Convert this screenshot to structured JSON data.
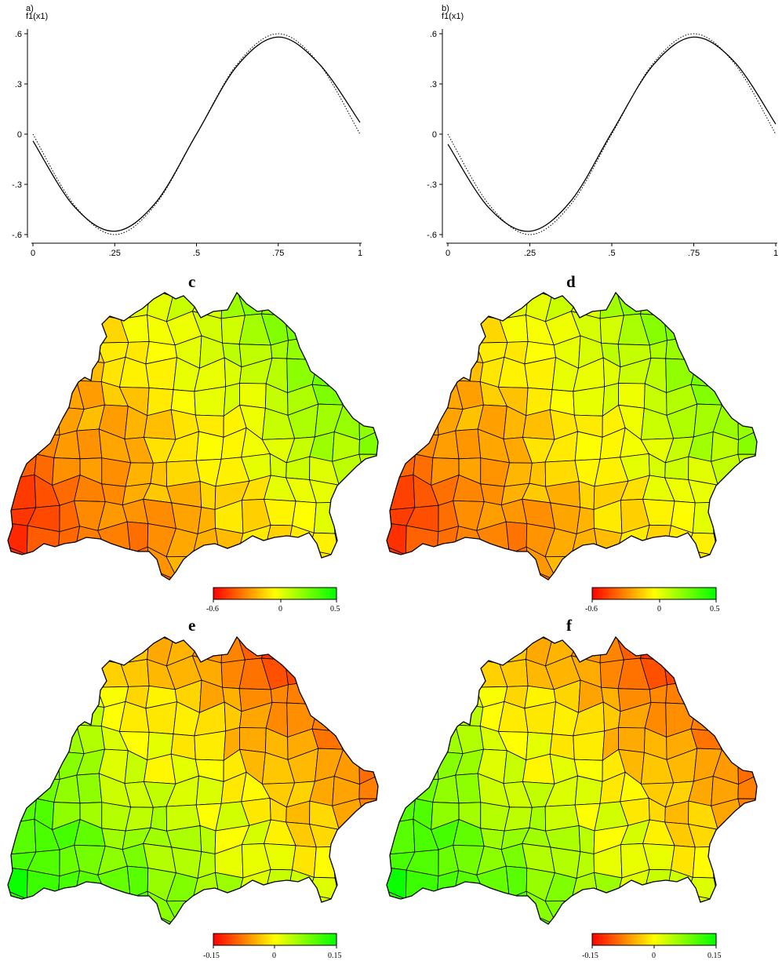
{
  "chart_data": [
    {
      "type": "line",
      "panel_label": "a)",
      "ylabel": "f1(x1)",
      "xlim": [
        0,
        1
      ],
      "ylim": [
        -0.6,
        0.6
      ],
      "xticks": [
        "0",
        ".25",
        ".5",
        ".75",
        "1"
      ],
      "yticks": [
        ".6",
        ".3",
        "0",
        "-.3",
        "-.6"
      ],
      "grid": false,
      "series": [
        {
          "style": "solid",
          "x": [
            0,
            0.125,
            0.25,
            0.375,
            0.5,
            0.625,
            0.75,
            0.875,
            1
          ],
          "y": [
            -0.04,
            -0.43,
            -0.58,
            -0.41,
            0.0,
            0.41,
            0.58,
            0.42,
            0.07
          ]
        },
        {
          "style": "dotted",
          "x": [
            0,
            0.125,
            0.25,
            0.375,
            0.5,
            0.625,
            0.75,
            0.875,
            1
          ],
          "y": [
            0.0,
            -0.42,
            -0.6,
            -0.42,
            0.0,
            0.42,
            0.6,
            0.42,
            0.0
          ]
        }
      ]
    },
    {
      "type": "line",
      "panel_label": "b)",
      "ylabel": "f1(x1)",
      "xlim": [
        0,
        1
      ],
      "ylim": [
        -0.6,
        0.6
      ],
      "xticks": [
        "0",
        ".25",
        ".5",
        ".75",
        "1"
      ],
      "yticks": [
        ".6",
        ".3",
        "0",
        "-.3",
        "-.6"
      ],
      "grid": false,
      "series": [
        {
          "style": "solid",
          "x": [
            0,
            0.125,
            0.25,
            0.375,
            0.5,
            0.625,
            0.75,
            0.875,
            1
          ],
          "y": [
            -0.06,
            -0.44,
            -0.58,
            -0.4,
            0.01,
            0.41,
            0.58,
            0.43,
            0.06
          ]
        },
        {
          "style": "dotted",
          "x": [
            0,
            0.125,
            0.25,
            0.375,
            0.5,
            0.625,
            0.75,
            0.875,
            1
          ],
          "y": [
            0.0,
            -0.42,
            -0.6,
            -0.42,
            0.0,
            0.42,
            0.6,
            0.42,
            0.0
          ]
        }
      ]
    },
    {
      "type": "heatmap",
      "title": "c",
      "scale_min": -0.6,
      "scale_max": 0.5,
      "colorbar_ticks": [
        "-0.6",
        "0",
        "0.5"
      ],
      "colormap": [
        "#ff0000",
        "#ffff00",
        "#00ff00"
      ],
      "gradient": {
        "west_south": -0.5,
        "east_north": 0.4
      }
    },
    {
      "type": "heatmap",
      "title": "d",
      "scale_min": -0.6,
      "scale_max": 0.5,
      "colorbar_ticks": [
        "-0.6",
        "0",
        "0.5"
      ],
      "colormap": [
        "#ff0000",
        "#ffff00",
        "#00ff00"
      ],
      "gradient": {
        "west_south": -0.48,
        "east_north": 0.38
      }
    },
    {
      "type": "heatmap",
      "title": "e",
      "scale_min": -0.15,
      "scale_max": 0.15,
      "colorbar_ticks": [
        "-0.15",
        "0",
        "0.15"
      ],
      "colormap": [
        "#ff0000",
        "#ffff00",
        "#00ff00"
      ],
      "gradient": {
        "south_west": 0.13,
        "north_east": -0.15
      }
    },
    {
      "type": "heatmap",
      "title": "f",
      "scale_min": -0.15,
      "scale_max": 0.15,
      "colorbar_ticks": [
        "-0.15",
        "0",
        "0.15"
      ],
      "colormap": [
        "#ff0000",
        "#ffff00",
        "#00ff00"
      ],
      "gradient": {
        "south_west": 0.13,
        "north_east": -0.15
      }
    }
  ]
}
